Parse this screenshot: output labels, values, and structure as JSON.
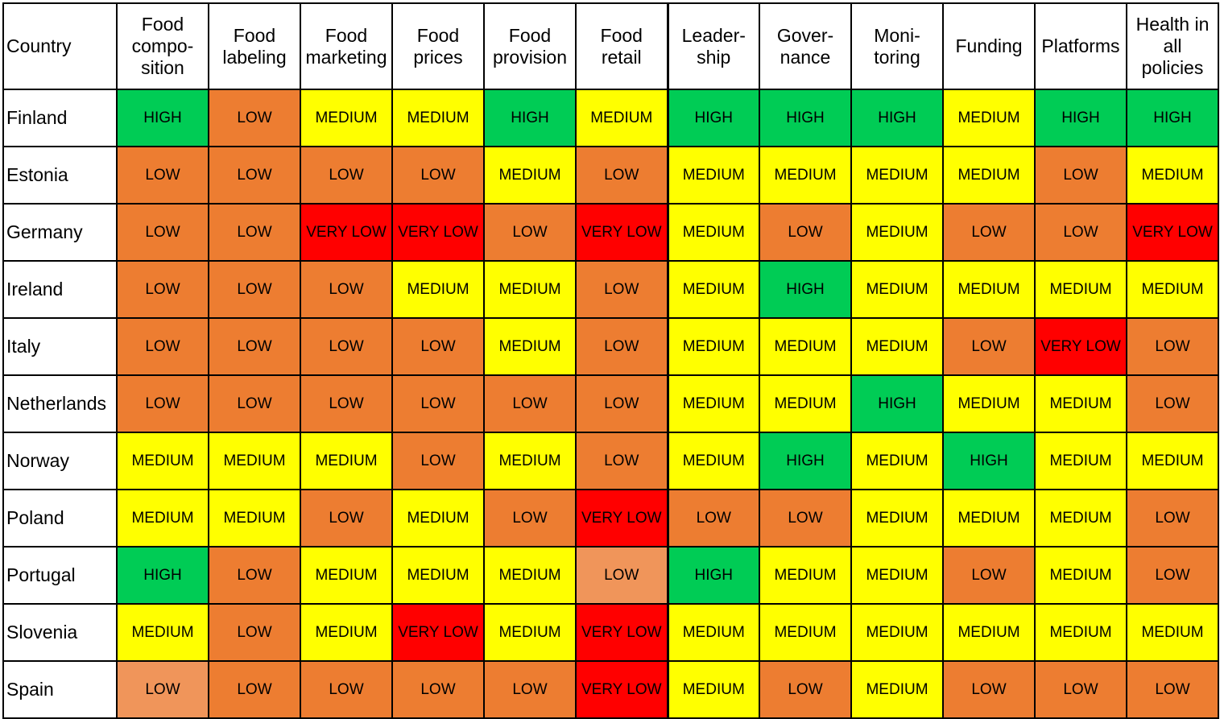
{
  "chart_data": {
    "type": "table",
    "corner_label": "Country",
    "columns": [
      {
        "label": "Food\ncompo-\nsition"
      },
      {
        "label": "Food\nlabeling"
      },
      {
        "label": "Food\nmarketing"
      },
      {
        "label": "Food\nprices"
      },
      {
        "label": "Food\nprovision"
      },
      {
        "label": "Food\nretail"
      },
      {
        "label": "Leader-\nship"
      },
      {
        "label": "Gover-\nnance"
      },
      {
        "label": "Moni-\ntoring"
      },
      {
        "label": "Funding"
      },
      {
        "label": "Platforms"
      },
      {
        "label": "Health in\nall\npolicies"
      }
    ],
    "rows": [
      {
        "country": "Finland",
        "values": [
          "HIGH",
          "LOW",
          "MEDIUM",
          "MEDIUM",
          "HIGH",
          "MEDIUM",
          "HIGH",
          "HIGH",
          "HIGH",
          "MEDIUM",
          "HIGH",
          "HIGH"
        ]
      },
      {
        "country": "Estonia",
        "values": [
          "LOW",
          "LOW",
          "LOW",
          "LOW",
          "MEDIUM",
          "LOW",
          "MEDIUM",
          "MEDIUM",
          "MEDIUM",
          "MEDIUM",
          "LOW",
          "MEDIUM"
        ]
      },
      {
        "country": "Germany",
        "values": [
          "LOW",
          "LOW",
          "VERY LOW",
          "VERY LOW",
          "LOW",
          "VERY LOW",
          "MEDIUM",
          "LOW",
          "MEDIUM",
          "LOW",
          "LOW",
          "VERY LOW"
        ]
      },
      {
        "country": "Ireland",
        "values": [
          "LOW",
          "LOW",
          "LOW",
          "MEDIUM",
          "MEDIUM",
          "LOW",
          "MEDIUM",
          "HIGH",
          "MEDIUM",
          "MEDIUM",
          "MEDIUM",
          "MEDIUM"
        ]
      },
      {
        "country": "Italy",
        "values": [
          "LOW",
          "LOW",
          "LOW",
          "LOW",
          "MEDIUM",
          "LOW",
          "MEDIUM",
          "MEDIUM",
          "MEDIUM",
          "LOW",
          "VERY LOW",
          "LOW"
        ]
      },
      {
        "country": "Netherlands",
        "values": [
          "LOW",
          "LOW",
          "LOW",
          "LOW",
          "LOW",
          "LOW",
          "MEDIUM",
          "MEDIUM",
          "HIGH",
          "MEDIUM",
          "MEDIUM",
          "LOW"
        ]
      },
      {
        "country": "Norway",
        "values": [
          "MEDIUM",
          "MEDIUM",
          "MEDIUM",
          "LOW",
          "MEDIUM",
          "LOW",
          "MEDIUM",
          "HIGH",
          "MEDIUM",
          "HIGH",
          "MEDIUM",
          "MEDIUM"
        ]
      },
      {
        "country": "Poland",
        "values": [
          "MEDIUM",
          "MEDIUM",
          "LOW",
          "MEDIUM",
          "LOW",
          "VERY LOW",
          "LOW",
          "LOW",
          "MEDIUM",
          "MEDIUM",
          "MEDIUM",
          "LOW"
        ]
      },
      {
        "country": "Portugal",
        "values": [
          "HIGH",
          "LOW",
          "MEDIUM",
          "MEDIUM",
          "MEDIUM",
          "LOW",
          "HIGH",
          "MEDIUM",
          "MEDIUM",
          "LOW",
          "MEDIUM",
          "LOW"
        ]
      },
      {
        "country": "Slovenia",
        "values": [
          "MEDIUM",
          "LOW",
          "MEDIUM",
          "VERY LOW",
          "MEDIUM",
          "VERY LOW",
          "MEDIUM",
          "MEDIUM",
          "MEDIUM",
          "MEDIUM",
          "MEDIUM",
          "MEDIUM"
        ]
      },
      {
        "country": "Spain",
        "values": [
          "LOW",
          "LOW",
          "LOW",
          "LOW",
          "LOW",
          "VERY LOW",
          "MEDIUM",
          "LOW",
          "MEDIUM",
          "LOW",
          "LOW",
          "LOW"
        ]
      }
    ],
    "light_low_cells": [
      [
        8,
        5
      ],
      [
        10,
        0
      ]
    ],
    "colors": {
      "HIGH": "#00cc55",
      "MEDIUM": "#ffff00",
      "LOW": "#ed7d31",
      "VERY LOW": "#ff0000",
      "LOW_light": "#f0955a"
    }
  }
}
